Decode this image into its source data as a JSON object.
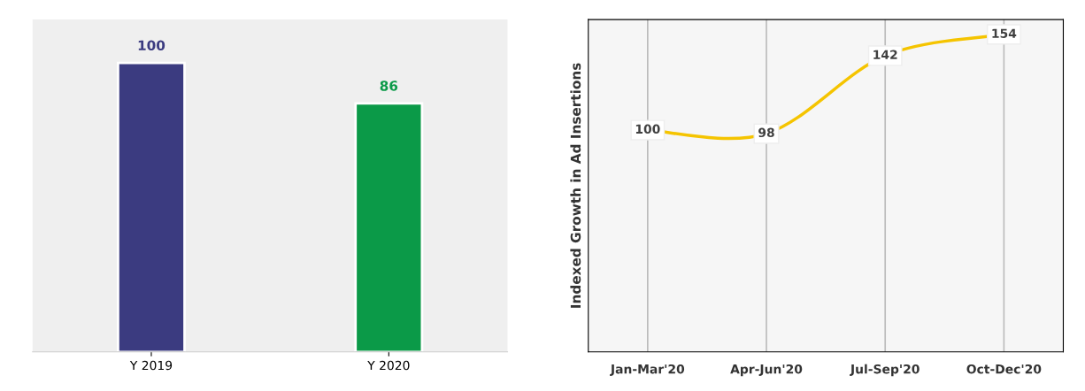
{
  "chart_data": [
    {
      "type": "bar",
      "categories": [
        "Y 2019",
        "Y 2020"
      ],
      "values": [
        100,
        86
      ],
      "colors": [
        "#3b3b80",
        "#0b9a48"
      ],
      "data_labels": true
    },
    {
      "type": "line",
      "ylabel": "Indexed Growth in Ad Insertions",
      "categories": [
        "Jan-Mar'20",
        "Apr-Jun'20",
        "Jul-Sep'20",
        "Oct-Dec'20"
      ],
      "series": [
        {
          "color": "#f5c400",
          "values": [
            100,
            98,
            142,
            154
          ]
        }
      ],
      "data_labels": true,
      "grid": "x",
      "marker": "square"
    }
  ]
}
